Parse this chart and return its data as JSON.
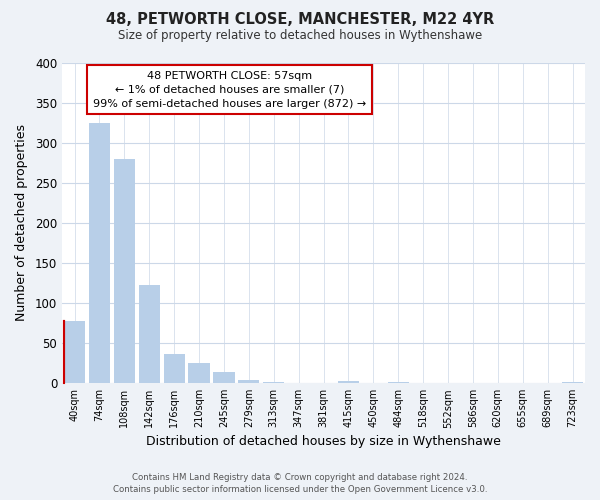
{
  "title": "48, PETWORTH CLOSE, MANCHESTER, M22 4YR",
  "subtitle": "Size of property relative to detached houses in Wythenshawe",
  "xlabel": "Distribution of detached houses by size in Wythenshawe",
  "ylabel": "Number of detached properties",
  "bin_labels": [
    "40sqm",
    "74sqm",
    "108sqm",
    "142sqm",
    "176sqm",
    "210sqm",
    "245sqm",
    "279sqm",
    "313sqm",
    "347sqm",
    "381sqm",
    "415sqm",
    "450sqm",
    "484sqm",
    "518sqm",
    "552sqm",
    "586sqm",
    "620sqm",
    "655sqm",
    "689sqm",
    "723sqm"
  ],
  "bar_values": [
    77,
    325,
    280,
    122,
    37,
    25,
    14,
    4,
    1,
    0,
    0,
    3,
    0,
    2,
    0,
    0,
    0,
    0,
    0,
    0,
    2
  ],
  "bar_color": "#b8cfe8",
  "highlight_color": "#cc0000",
  "annotation_line1": "48 PETWORTH CLOSE: 57sqm",
  "annotation_line2": "← 1% of detached houses are smaller (7)",
  "annotation_line3": "99% of semi-detached houses are larger (872) →",
  "annotation_box_color": "#ffffff",
  "annotation_box_edge": "#cc0000",
  "ylim": [
    0,
    400
  ],
  "yticks": [
    0,
    50,
    100,
    150,
    200,
    250,
    300,
    350,
    400
  ],
  "footer_line1": "Contains HM Land Registry data © Crown copyright and database right 2024.",
  "footer_line2": "Contains public sector information licensed under the Open Government Licence v3.0.",
  "bg_color": "#eef2f7",
  "plot_bg_color": "#ffffff",
  "grid_color": "#ccd8e8"
}
